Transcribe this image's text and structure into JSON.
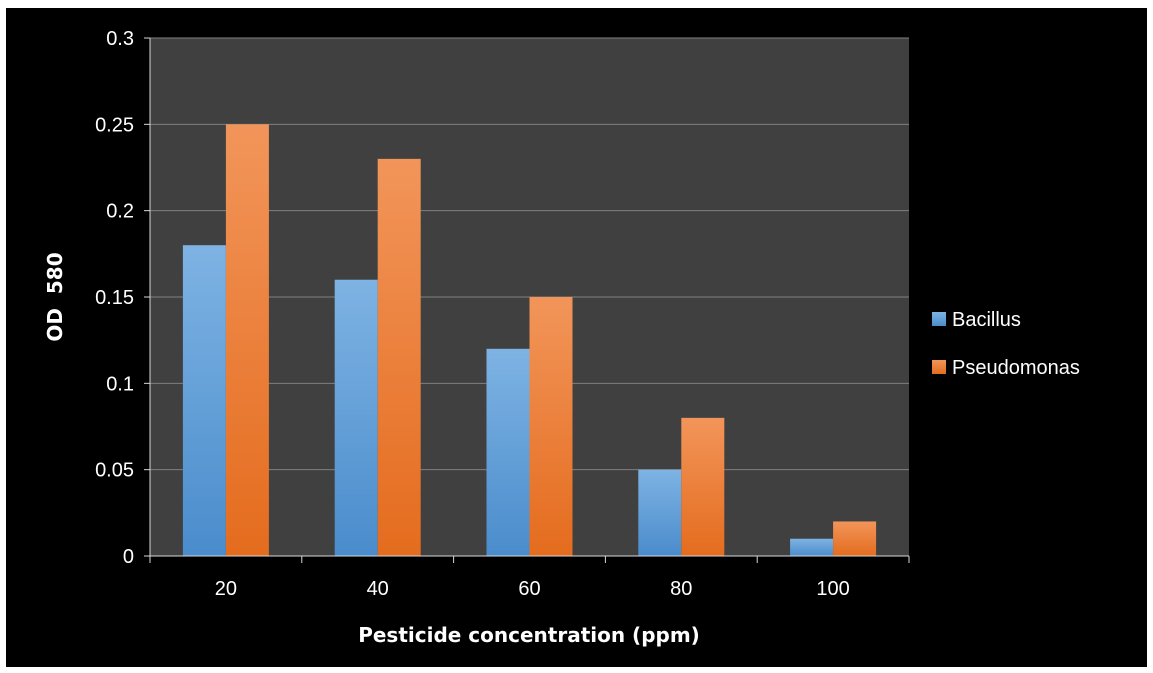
{
  "chart_data": {
    "type": "bar",
    "title": "",
    "xlabel": "Pesticide concentration (ppm)",
    "ylabel": "OD  580",
    "categories": [
      "20",
      "40",
      "60",
      "80",
      "100"
    ],
    "ylim": [
      0,
      0.3
    ],
    "yticks": [
      0,
      0.05,
      0.1,
      0.15,
      0.2,
      0.25,
      0.3
    ],
    "ytick_labels": [
      "0",
      "0.05",
      "0.1",
      "0.15",
      "0.2",
      "0.25",
      "0.3"
    ],
    "grid": true,
    "legend_position": "right",
    "series": [
      {
        "name": "Bacillus",
        "values": [
          0.18,
          0.16,
          0.12,
          0.05,
          0.01
        ],
        "color": "#5b9bd5"
      },
      {
        "name": "Pseudomonas",
        "values": [
          0.25,
          0.23,
          0.15,
          0.08,
          0.02
        ],
        "color": "#ed7d31"
      }
    ],
    "colors": {
      "background": "#000000",
      "plot_area": "#404040",
      "gridline": "#7f7f7f",
      "text": "#ffffff"
    }
  }
}
